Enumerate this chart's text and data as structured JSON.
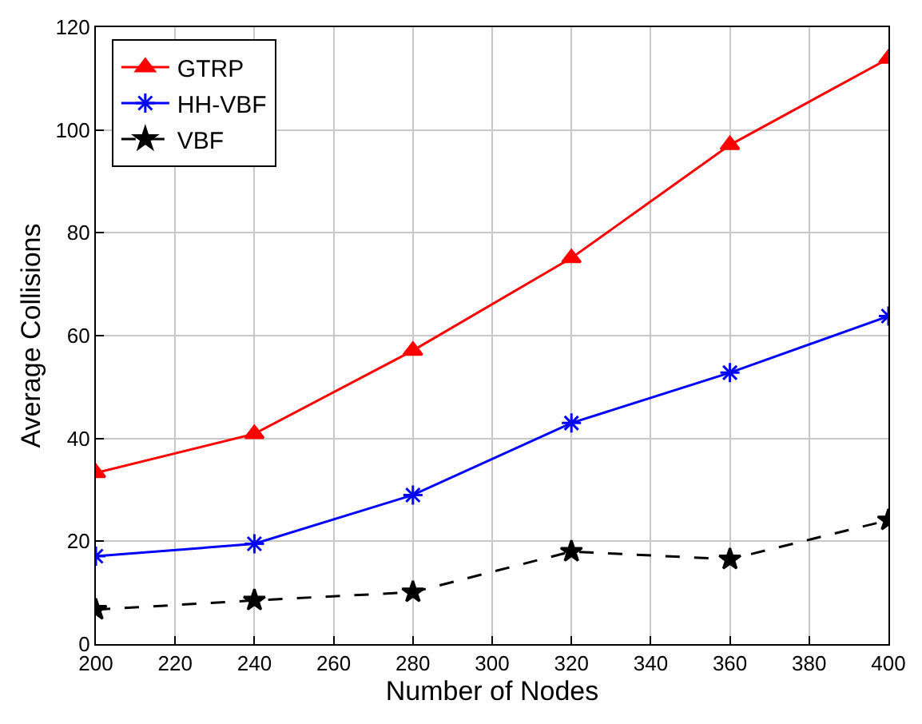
{
  "chart_data": {
    "type": "line",
    "xlabel": "Number of Nodes",
    "ylabel": "Average Collisions",
    "x": [
      200,
      240,
      280,
      320,
      360,
      400
    ],
    "series": [
      {
        "name": "GTRP",
        "color": "#ff0000",
        "marker": "triangle",
        "line_style": "solid",
        "values": [
          33.3,
          40.9,
          57.1,
          75.1,
          97.1,
          113.9
        ]
      },
      {
        "name": "HH-VBF",
        "color": "#0000ff",
        "marker": "cross",
        "line_style": "solid",
        "values": [
          17.1,
          19.5,
          29,
          43,
          52.8,
          63.8
        ]
      },
      {
        "name": "VBF",
        "color": "#000000",
        "marker": "star",
        "line_style": "dashed",
        "values": [
          6.7,
          8.5,
          10.1,
          18,
          16.5,
          24.1
        ]
      }
    ],
    "xlim": [
      200,
      400
    ],
    "xticks": [
      200,
      220,
      240,
      260,
      280,
      300,
      320,
      340,
      360,
      380,
      400
    ],
    "ylim": [
      0,
      120
    ],
    "yticks": [
      0,
      20,
      40,
      60,
      80,
      100,
      120
    ],
    "grid": true,
    "legend": "top left"
  }
}
